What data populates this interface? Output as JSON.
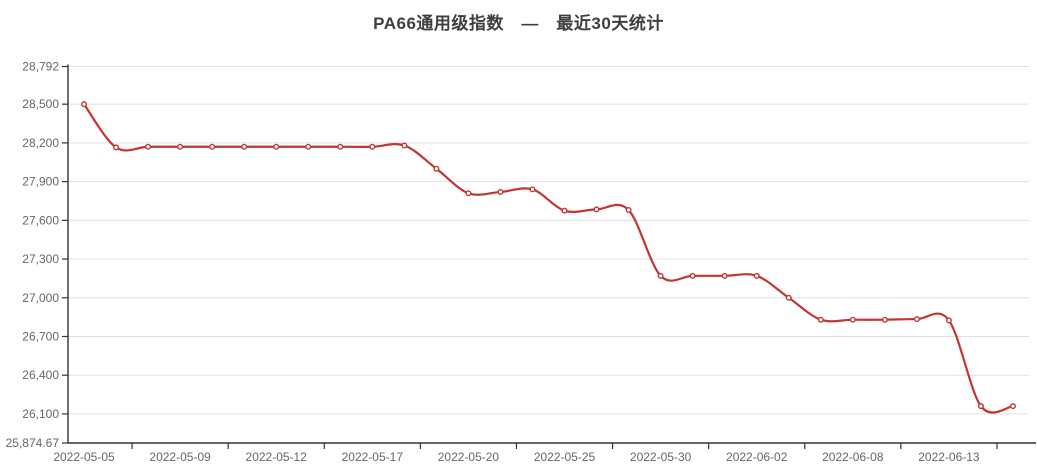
{
  "page": {
    "background": "#ffffff"
  },
  "chart_data": {
    "type": "line",
    "title": "PA66通用级指数　—　最近30天统计",
    "series_name": "PA66通用级指数",
    "x": [
      "2022-05-05",
      "2022-05-06",
      "2022-05-07",
      "2022-05-09",
      "2022-05-10",
      "2022-05-11",
      "2022-05-12",
      "2022-05-13",
      "2022-05-16",
      "2022-05-17",
      "2022-05-18",
      "2022-05-19",
      "2022-05-20",
      "2022-05-23",
      "2022-05-24",
      "2022-05-25",
      "2022-05-26",
      "2022-05-27",
      "2022-05-30",
      "2022-05-31",
      "2022-06-01",
      "2022-06-02",
      "2022-06-06",
      "2022-06-07",
      "2022-06-08",
      "2022-06-09",
      "2022-06-10",
      "2022-06-13",
      "2022-06-14",
      "2022-06-15"
    ],
    "values": [
      28500,
      28165,
      28170,
      28170,
      28170,
      28170,
      28170,
      28170,
      28170,
      28170,
      28180,
      28000,
      27810,
      27820,
      27840,
      27675,
      27685,
      27680,
      27170,
      27170,
      27170,
      27170,
      27000,
      26830,
      26830,
      26830,
      26835,
      26825,
      26160,
      26160
    ],
    "x_label_indices": [
      0,
      3,
      6,
      9,
      12,
      15,
      18,
      21,
      24,
      27
    ],
    "x_tick_labels": [
      "2022-05-05",
      "2022-05-09",
      "2022-05-12",
      "2022-05-17",
      "2022-05-20",
      "2022-05-25",
      "2022-05-30",
      "2022-06-02",
      "2022-06-08",
      "2022-06-13"
    ],
    "y_ticks": [
      {
        "v": 25874.67,
        "label": "25,874.67"
      },
      {
        "v": 26100,
        "label": "26,100"
      },
      {
        "v": 26400,
        "label": "26,400"
      },
      {
        "v": 26700,
        "label": "26,700"
      },
      {
        "v": 27000,
        "label": "27,000"
      },
      {
        "v": 27300,
        "label": "27,300"
      },
      {
        "v": 27600,
        "label": "27,600"
      },
      {
        "v": 27900,
        "label": "27,900"
      },
      {
        "v": 28200,
        "label": "28,200"
      },
      {
        "v": 28500,
        "label": "28,500"
      },
      {
        "v": 28792,
        "label": "28,792"
      }
    ],
    "ylim": [
      25874.67,
      28792
    ],
    "grid": true,
    "legend": "none",
    "smooth": true,
    "marker": "hollow-circle",
    "colors": {
      "line": "#c23531",
      "marker_fill": "#ffffff",
      "grid_line": "#e0e0e0",
      "axis_line": "#333333",
      "tick_label": "#666666",
      "title": "#3f3f3f"
    }
  }
}
